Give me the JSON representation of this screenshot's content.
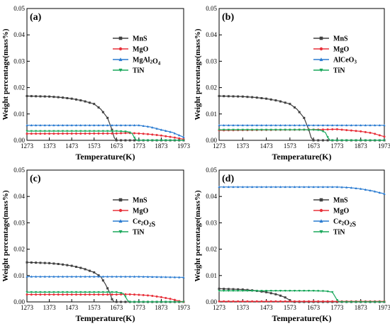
{
  "chart_data": [
    {
      "type": "line",
      "panel_label": "(a)",
      "xlabel": "Temperature(K)",
      "ylabel": "Weight percentage(mass%)",
      "xlim": [
        1273,
        1973
      ],
      "ylim": [
        0,
        0.05
      ],
      "xticks": [
        1273,
        1373,
        1473,
        1573,
        1673,
        1773,
        1873,
        1973
      ],
      "yticks": [
        0.0,
        0.01,
        0.02,
        0.03,
        0.04,
        0.05
      ],
      "ytick_labels": [
        "0.00",
        "0.01",
        "0.02",
        "0.03",
        "0.04",
        "0.05"
      ],
      "legend_position": "upper-right",
      "series": [
        {
          "name": "MnS",
          "color": "#404040",
          "marker": "square",
          "x": [
            1273,
            1373,
            1423,
            1473,
            1523,
            1573,
            1603,
            1633,
            1653,
            1663,
            1673,
            1973
          ],
          "y": [
            0.0168,
            0.0166,
            0.0163,
            0.0158,
            0.015,
            0.0138,
            0.0118,
            0.0085,
            0.004,
            0.001,
            0,
            0
          ]
        },
        {
          "name": "MgO",
          "color": "#e8303a",
          "marker": "circle",
          "x": [
            1273,
            1673,
            1723,
            1773,
            1823,
            1873,
            1923,
            1973
          ],
          "y": [
            0.0025,
            0.0026,
            0.0028,
            0.0026,
            0.0023,
            0.0018,
            0.0012,
            0.0004
          ]
        },
        {
          "name": "MgAl2O4",
          "label_main": "MgAl",
          "label_sub1": "2",
          "label_mid": "O",
          "label_sub2": "4",
          "color": "#2a7bd1",
          "marker": "triangle-up",
          "x": [
            1273,
            1773,
            1823,
            1873,
            1923,
            1973
          ],
          "y": [
            0.0057,
            0.0057,
            0.0051,
            0.004,
            0.003,
            0.0012
          ]
        },
        {
          "name": "TiN",
          "color": "#1aa85c",
          "marker": "triangle-down",
          "x": [
            1273,
            1673,
            1723,
            1743,
            1753,
            1763,
            1973
          ],
          "y": [
            0.0035,
            0.0035,
            0.0033,
            0.0026,
            0.001,
            0,
            0
          ]
        }
      ]
    },
    {
      "type": "line",
      "panel_label": "(b)",
      "xlabel": "Temperature(K)",
      "ylabel": "Weight percentage(mass%)",
      "xlim": [
        1273,
        1973
      ],
      "ylim": [
        0,
        0.05
      ],
      "xticks": [
        1273,
        1373,
        1473,
        1573,
        1673,
        1773,
        1873,
        1973
      ],
      "yticks": [
        0.0,
        0.01,
        0.02,
        0.03,
        0.04,
        0.05
      ],
      "ytick_labels": [
        "0.00",
        "0.01",
        "0.02",
        "0.03",
        "0.04",
        "0.05"
      ],
      "legend_position": "upper-right",
      "series": [
        {
          "name": "MnS",
          "color": "#404040",
          "marker": "square",
          "x": [
            1273,
            1373,
            1423,
            1473,
            1523,
            1573,
            1603,
            1633,
            1653,
            1663,
            1673,
            1973
          ],
          "y": [
            0.0168,
            0.0166,
            0.0163,
            0.0158,
            0.015,
            0.0138,
            0.0118,
            0.0085,
            0.004,
            0.001,
            0,
            0
          ]
        },
        {
          "name": "MgO",
          "color": "#e8303a",
          "marker": "circle",
          "x": [
            1273,
            1723,
            1773,
            1823,
            1873,
            1923,
            1973
          ],
          "y": [
            0.0038,
            0.0041,
            0.0042,
            0.0038,
            0.0034,
            0.0027,
            0.0014
          ]
        },
        {
          "name": "AlCeO3",
          "label_main": "AlCeO",
          "label_sub1": "3",
          "label_mid": "",
          "label_sub2": "",
          "color": "#2a7bd1",
          "marker": "triangle-up",
          "x": [
            1273,
            1973
          ],
          "y": [
            0.0057,
            0.0057
          ]
        },
        {
          "name": "TiN",
          "color": "#1aa85c",
          "marker": "triangle-down",
          "x": [
            1273,
            1673,
            1703,
            1723,
            1733,
            1743,
            1973
          ],
          "y": [
            0.004,
            0.004,
            0.0038,
            0.003,
            0.0012,
            0,
            0
          ]
        }
      ]
    },
    {
      "type": "line",
      "panel_label": "(c)",
      "xlabel": "Temperature(K)",
      "ylabel": "Weight percentage(mass%)",
      "xlim": [
        1273,
        1973
      ],
      "ylim": [
        0,
        0.05
      ],
      "xticks": [
        1273,
        1373,
        1473,
        1573,
        1673,
        1773,
        1873,
        1973
      ],
      "yticks": [
        0.0,
        0.01,
        0.02,
        0.03,
        0.04,
        0.05
      ],
      "ytick_labels": [
        "0.00",
        "0.01",
        "0.02",
        "0.03",
        "0.04",
        "0.05"
      ],
      "legend_position": "upper-right",
      "series": [
        {
          "name": "MnS",
          "color": "#404040",
          "marker": "square",
          "x": [
            1273,
            1373,
            1423,
            1473,
            1523,
            1573,
            1603,
            1623,
            1643,
            1653,
            1663,
            1973
          ],
          "y": [
            0.015,
            0.0147,
            0.0143,
            0.0137,
            0.0127,
            0.0112,
            0.0095,
            0.0068,
            0.0035,
            0.001,
            0,
            0
          ]
        },
        {
          "name": "MgO",
          "color": "#e8303a",
          "marker": "circle",
          "x": [
            1273,
            1673,
            1723,
            1773,
            1823,
            1873,
            1923,
            1953,
            1973
          ],
          "y": [
            0.0028,
            0.0028,
            0.0029,
            0.0027,
            0.0024,
            0.0018,
            0.001,
            0.0003,
            0
          ]
        },
        {
          "name": "Ce2O2S",
          "label_main": "Ce",
          "label_sub1": "2",
          "label_mid": "O",
          "label_sub2": "2",
          "label_tail": "S",
          "color": "#2a7bd1",
          "marker": "triangle-up",
          "x": [
            1273,
            1773,
            1973
          ],
          "y": [
            0.0096,
            0.0096,
            0.0093
          ]
        },
        {
          "name": "TiN",
          "color": "#1aa85c",
          "marker": "triangle-down",
          "x": [
            1273,
            1673,
            1703,
            1713,
            1723,
            1733,
            1973
          ],
          "y": [
            0.0037,
            0.0037,
            0.0032,
            0.002,
            0.0005,
            0,
            0
          ]
        }
      ]
    },
    {
      "type": "line",
      "panel_label": "(d)",
      "xlabel": "Temperature(K)",
      "ylabel": "Weight percentage(mass%)",
      "xlim": [
        1273,
        1973
      ],
      "ylim": [
        0,
        0.05
      ],
      "xticks": [
        1273,
        1373,
        1473,
        1573,
        1673,
        1773,
        1873,
        1973
      ],
      "yticks": [
        0.0,
        0.01,
        0.02,
        0.03,
        0.04,
        0.05
      ],
      "ytick_labels": [
        "0.00",
        "0.01",
        "0.02",
        "0.03",
        "0.04",
        "0.05"
      ],
      "legend_position": "upper-right",
      "series": [
        {
          "name": "MnS",
          "color": "#404040",
          "marker": "square",
          "x": [
            1273,
            1373,
            1423,
            1473,
            1523,
            1553,
            1573,
            1583,
            1973
          ],
          "y": [
            0.005,
            0.0047,
            0.0043,
            0.0037,
            0.0027,
            0.0017,
            0.0006,
            0,
            0
          ]
        },
        {
          "name": "MgO",
          "color": "#e8303a",
          "marker": "circle",
          "x": [
            1273,
            1973
          ],
          "y": [
            0.0002,
            0.0002
          ]
        },
        {
          "name": "Ce2O2S",
          "label_main": "Ce",
          "label_sub1": "2",
          "label_mid": "O",
          "label_sub2": "2",
          "label_tail": "S",
          "color": "#2a7bd1",
          "marker": "triangle-up",
          "x": [
            1273,
            1773,
            1823,
            1873,
            1923,
            1973
          ],
          "y": [
            0.0436,
            0.0436,
            0.0434,
            0.0429,
            0.0421,
            0.041
          ]
        },
        {
          "name": "TiN",
          "color": "#1aa85c",
          "marker": "triangle-down",
          "x": [
            1273,
            1673,
            1723,
            1753,
            1763,
            1773,
            1783,
            1973
          ],
          "y": [
            0.0042,
            0.0042,
            0.0041,
            0.0037,
            0.0022,
            0.0007,
            0,
            0
          ]
        }
      ]
    }
  ]
}
